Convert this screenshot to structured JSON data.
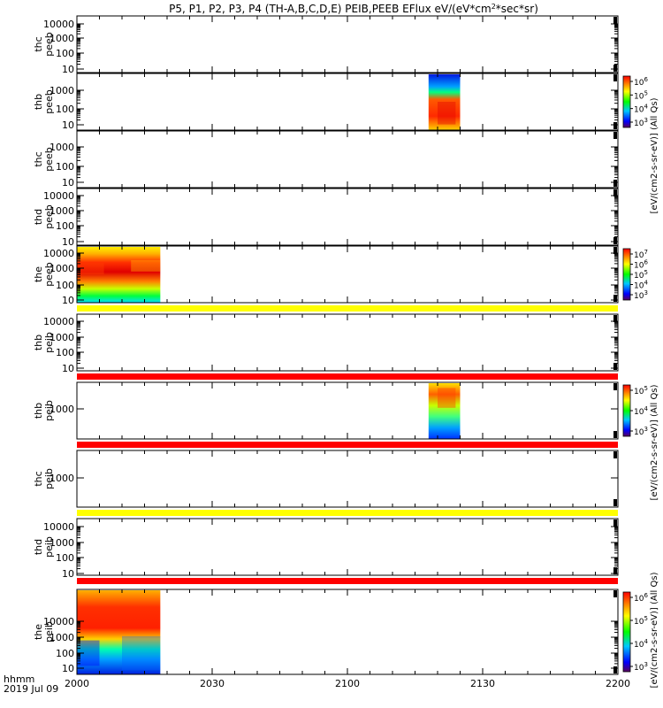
{
  "title": "P5, P1, P2, P3, P4 (TH-A,B,C,D,E) PEIB,PEEB EFlux eV/(eV*cm",
  "title_sup": "2",
  "title_end": "*sec*sr)",
  "time_label": "hhmm",
  "date_label": "2019 Jul 09",
  "colorbar_label": "[eV/(cm2-s-sr-eV)] (All Qs)",
  "chart_data": {
    "type": "heatmap",
    "x_ticks": [
      "2000",
      "2030",
      "2100",
      "2130",
      "2200"
    ],
    "panels": [
      {
        "label1": "thc",
        "label2": "peeb",
        "y_ticks": [
          "10",
          "100",
          "1000",
          "10000"
        ],
        "data_label": ""
      },
      {
        "label1": "thb",
        "label2": "peeb",
        "y_ticks": [
          "10",
          "100",
          "1000"
        ],
        "colorbar_ticks": [
          "10",
          "10",
          "10",
          "10"
        ],
        "colorbar_exps": [
          "3",
          "4",
          "5",
          "6"
        ],
        "data_label": ""
      },
      {
        "label1": "thc",
        "label2": "peeb",
        "y_ticks": [
          "10",
          "100",
          "1000"
        ],
        "data_label": ""
      },
      {
        "label1": "thd",
        "label2": "peeb",
        "y_ticks": [
          "10",
          "100",
          "1000",
          "10000"
        ],
        "data_label": ""
      },
      {
        "label1": "the",
        "label2": "peeb",
        "y_ticks": [
          "10",
          "100",
          "1000",
          "10000"
        ],
        "colorbar_ticks": [
          "10",
          "10",
          "10",
          "10",
          "10"
        ],
        "colorbar_exps": [
          "3",
          "4",
          "5",
          "6",
          "7"
        ],
        "data_label": ""
      },
      {
        "label1": "thb",
        "label2": "peib",
        "y_ticks": [
          "10",
          "100",
          "1000",
          "10000"
        ],
        "data_label": ""
      },
      {
        "label1": "thb",
        "label2": "peib",
        "y_ticks": [
          "1000"
        ],
        "colorbar_ticks": [
          "10",
          "10",
          "10"
        ],
        "colorbar_exps": [
          "3",
          "4",
          "5"
        ],
        "data_label": ""
      },
      {
        "label1": "thc",
        "label2": "peib",
        "y_ticks": [
          "1000"
        ],
        "data_label": ""
      },
      {
        "label1": "thd",
        "label2": "peib",
        "y_ticks": [
          "10",
          "100",
          "1000",
          "10000"
        ],
        "data_label": ""
      },
      {
        "label1": "the",
        "label2": "peib",
        "y_ticks": [
          "10",
          "100",
          "1000",
          "10000"
        ],
        "colorbar_ticks": [
          "10",
          "10",
          "10",
          "10"
        ],
        "colorbar_exps": [
          "3",
          "4",
          "5",
          "6"
        ],
        "data_label": ""
      }
    ],
    "y_scale": "log",
    "y_unit": "eV",
    "x_range": [
      "20:00",
      "22:00"
    ],
    "colorbar_scale": "log"
  }
}
